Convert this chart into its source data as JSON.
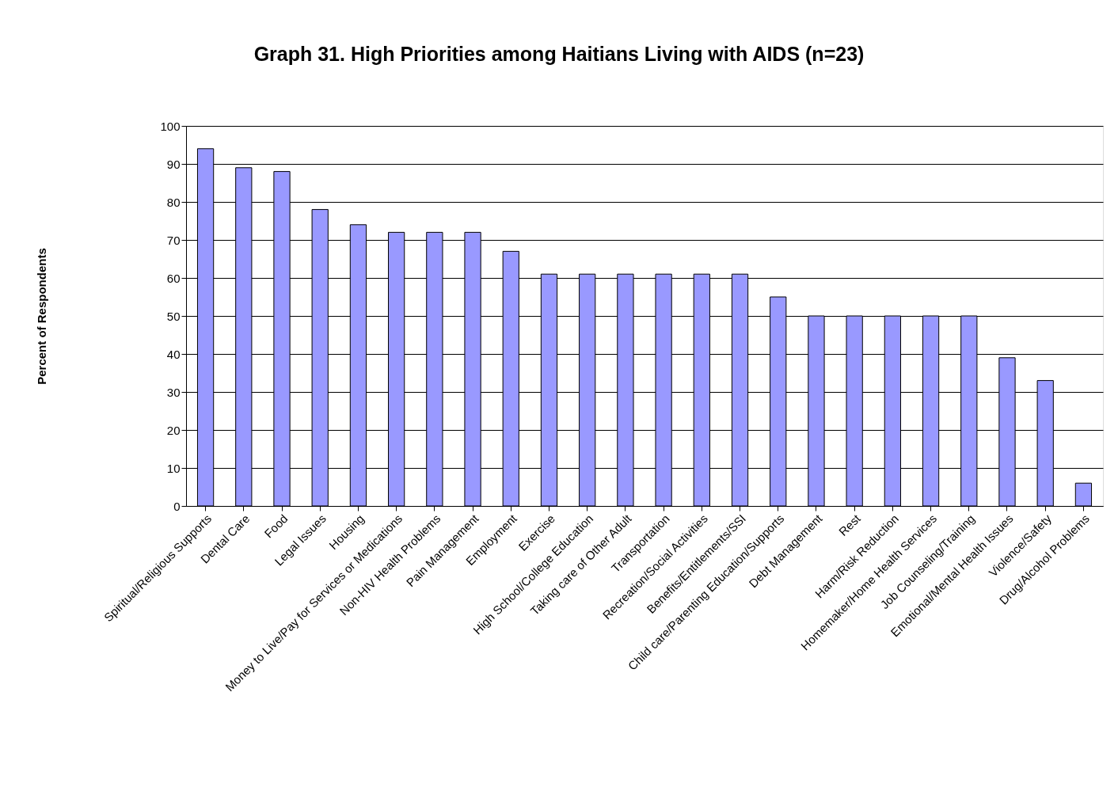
{
  "chart_data": {
    "type": "bar",
    "title": "Graph 31. High Priorities among Haitians Living with AIDS (n=23)",
    "ylabel": "Percent of Respondents",
    "categories": [
      "Spiritual/Religious Supports",
      "Dental Care",
      "Food",
      "Legal Issues",
      "Housing",
      "Money to Live/Pay for Services or Medications",
      "Non-HIV Health Problems",
      "Pain Management",
      "Employment",
      "Exercise",
      "High School/College Education",
      "Taking care of Other Adult",
      "Transportation",
      "Recreation/Social Activities",
      "Benefits/Entitlements/SSI",
      "Child care/Parenting Education/Supports",
      "Debt Management",
      "Rest",
      "Harm/Risk Reduction",
      "Homemaker/Home Health Services",
      "Job Counseling/Training",
      "Emotional/Mental Health Issues",
      "Violence/Safety",
      "Drug/Alcohol Problems"
    ],
    "values": [
      94,
      89,
      88,
      78,
      74,
      72,
      72,
      72,
      67,
      61,
      61,
      61,
      61,
      61,
      61,
      55,
      50,
      50,
      50,
      50,
      50,
      39,
      33,
      6
    ],
    "color": "#9999ff",
    "ylim": [
      0,
      100
    ],
    "yticks": [
      0,
      10,
      20,
      30,
      40,
      50,
      60,
      70,
      80,
      90,
      100
    ],
    "grid": "y"
  }
}
